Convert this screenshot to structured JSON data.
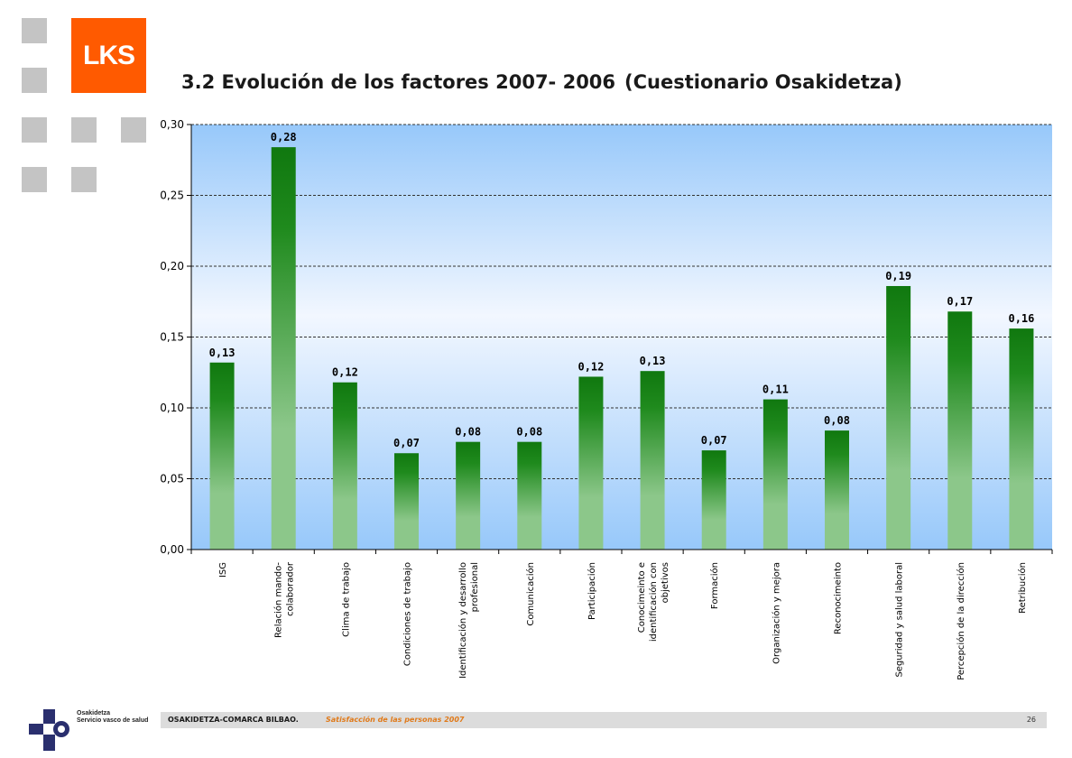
{
  "header": {
    "logo_text": "LKS",
    "title": "3.2 Evolución de los factores 2007- 2006",
    "title_suffix": "(Cuestionario Osakidetza)"
  },
  "colors": {
    "logo": "#ff5a00",
    "decor_squares": "#c4c4c4",
    "bar_top": "#10780f",
    "bar_bottom": "#8cc78a",
    "plot_bg_top": "#f2f7ff",
    "plot_bg_bottom": "#97c8fa",
    "footer_accent": "#e07a1a"
  },
  "chart_data": {
    "type": "bar",
    "title": "",
    "xlabel": "",
    "ylabel": "",
    "ylim": [
      0,
      0.3
    ],
    "yticks": [
      0,
      0.05,
      0.1,
      0.15,
      0.2,
      0.25,
      0.3
    ],
    "ytick_labels": [
      "0,00",
      "0,05",
      "0,10",
      "0,15",
      "0,20",
      "0,25",
      "0,30"
    ],
    "grid": true,
    "legend": "none",
    "categories": [
      "ISG",
      "Relación mando-colaborador",
      "Clima de trabajo",
      "Condiciones de trabajo",
      "Identificación y desarrollo profesional",
      "Comunicación",
      "Participación",
      "Conocimeinto e identificación con objetivos",
      "Formación",
      "Organización y mejora",
      "Reconocimeinto",
      "Seguridad y salud laboral",
      "Percepción de la dirección",
      "Retribución"
    ],
    "category_lines": [
      [
        "ISG"
      ],
      [
        "Relación mando-",
        "colaborador"
      ],
      [
        "Clima de trabajo"
      ],
      [
        "Condiciones de trabajo"
      ],
      [
        "Identificación y desarrollo",
        "profesional"
      ],
      [
        "Comunicación"
      ],
      [
        "Participación"
      ],
      [
        "Conocimeinto e",
        "identificación con",
        "objetivos"
      ],
      [
        "Formación"
      ],
      [
        "Organización y mejora"
      ],
      [
        "Reconocimeinto"
      ],
      [
        "Seguridad y salud laboral"
      ],
      [
        "Percepción de la dirección"
      ],
      [
        "Retribución"
      ]
    ],
    "values": [
      0.132,
      0.284,
      0.118,
      0.068,
      0.076,
      0.076,
      0.122,
      0.126,
      0.07,
      0.106,
      0.084,
      0.186,
      0.168,
      0.156
    ],
    "data_labels": [
      "0,13",
      "0,28",
      "0,12",
      "0,07",
      "0,08",
      "0,08",
      "0,12",
      "0,13",
      "0,07",
      "0,11",
      "0,08",
      "0,19",
      "0,17",
      "0,16"
    ]
  },
  "footer": {
    "org": "OSAKIDETZA-COMARCA BILBAO.",
    "subtitle": "Satisfacción  de las personas  2007",
    "page": "26",
    "brand_line1": "Osakidetza",
    "brand_line2": "Servicio vasco de salud"
  }
}
